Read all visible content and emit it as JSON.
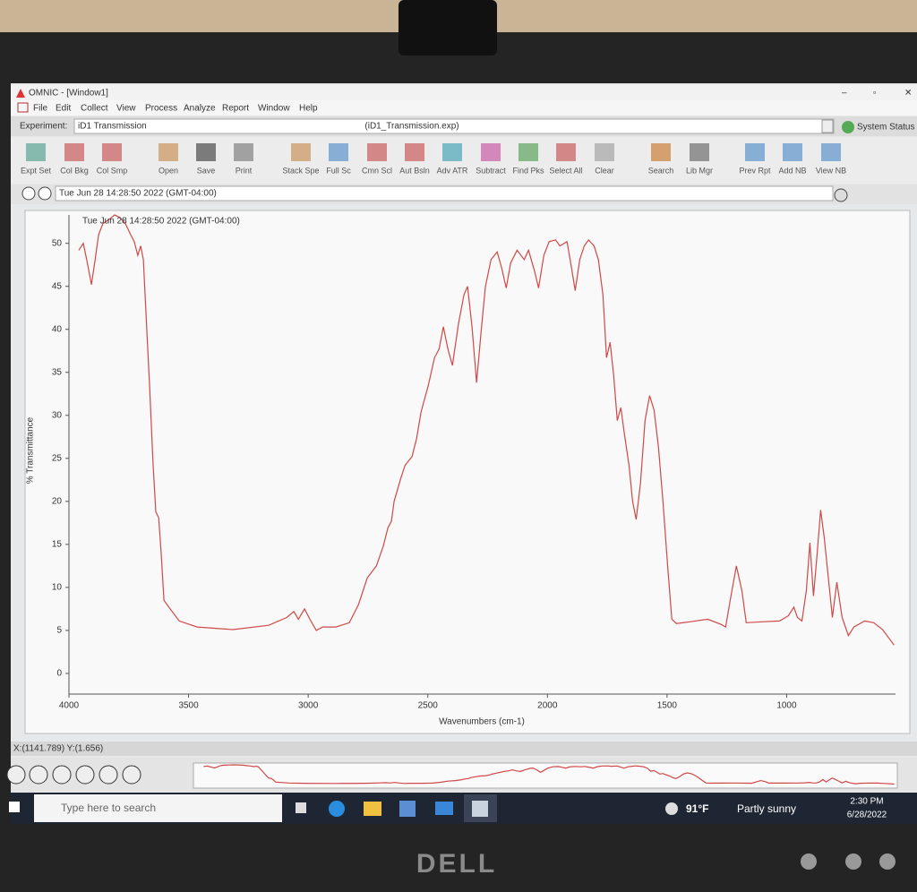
{
  "window": {
    "title": "OMNIC - [Window1]",
    "menus": [
      "File",
      "Edit",
      "Collect",
      "View",
      "Process",
      "Analyze",
      "Report",
      "Window",
      "Help"
    ]
  },
  "experiment": {
    "label": "Experiment:",
    "name": "iD1 Transmission",
    "file": "(iD1_Transmission.exp)",
    "status": "System Status"
  },
  "toolbar": [
    "Expt Set",
    "Col Bkg",
    "Col Smp",
    "Open",
    "Save",
    "Print",
    "Stack Spe",
    "Full Sc",
    "Cmn Scl",
    "Aut Bsln",
    "Adv ATR",
    "Subtract",
    "Find Pks",
    "Select All",
    "Clear",
    "Search",
    "Lib Mgr",
    "Prev Rpt",
    "Add NB",
    "View NB"
  ],
  "info": "Tue Jun 28 14:28:50 2022 (GMT-04:00)",
  "chart_data": {
    "type": "line",
    "annotation": "Tue Jun 28 14:28:50 2022 (GMT-04:00)",
    "x_label": "Wavenumbers (cm-1)",
    "y_label": "% Transmittance",
    "xlim": [
      4000,
      545
    ],
    "ylim": [
      -2.4,
      53.3
    ],
    "xticks": [
      4000,
      3500,
      3000,
      2500,
      2000,
      1500,
      1000
    ],
    "yticks": [
      0,
      5,
      10,
      15,
      20,
      25,
      30,
      35,
      40,
      45,
      50
    ],
    "series": [
      {
        "name": "iD1 Transmission",
        "color": "#d04848",
        "x": [
          3959,
          3940,
          3925,
          3906,
          3891,
          3876,
          3858,
          3831,
          3809,
          3787,
          3764,
          3742,
          3727,
          3712,
          3700,
          3689,
          3678,
          3663,
          3648,
          3637,
          3625,
          3614,
          3603,
          3577,
          3539,
          3464,
          3315,
          3165,
          3090,
          3060,
          3041,
          3015,
          2993,
          2966,
          2940,
          2884,
          2828,
          2790,
          2753,
          2715,
          2686,
          2667,
          2652,
          2641,
          2614,
          2595,
          2566,
          2547,
          2528,
          2498,
          2472,
          2453,
          2435,
          2416,
          2397,
          2371,
          2349,
          2334,
          2315,
          2296,
          2277,
          2259,
          2236,
          2210,
          2191,
          2172,
          2154,
          2127,
          2097,
          2079,
          2052,
          2037,
          2015,
          1993,
          1966,
          1948,
          1918,
          1899,
          1884,
          1865,
          1846,
          1828,
          1805,
          1787,
          1768,
          1753,
          1738,
          1723,
          1708,
          1693,
          1678,
          1659,
          1644,
          1629,
          1611,
          1592,
          1573,
          1554,
          1536,
          1517,
          1498,
          1480,
          1461,
          1405,
          1330,
          1274,
          1255,
          1236,
          1210,
          1187,
          1169,
          1105,
          1030,
          993,
          970,
          955,
          936,
          918,
          903,
          888,
          873,
          858,
          843,
          824,
          809,
          790,
          768,
          742,
          719,
          674,
          636,
          599,
          551
        ],
        "values": [
          49.2,
          50,
          48,
          45.2,
          48,
          51,
          52.3,
          52.8,
          53.3,
          53,
          52.3,
          51,
          50.2,
          48.6,
          49.7,
          48.1,
          41.9,
          33.5,
          24.2,
          18.8,
          18.1,
          13.8,
          8.5,
          7.5,
          6.1,
          5.4,
          5.1,
          5.6,
          6.5,
          7.2,
          6.3,
          7.5,
          6.3,
          5,
          5.4,
          5.4,
          5.9,
          8,
          11.1,
          12.5,
          14.8,
          16.9,
          17.7,
          20,
          22.6,
          24.2,
          25.2,
          27.3,
          30.4,
          33.5,
          36.7,
          37.7,
          40.3,
          37.7,
          35.8,
          40.8,
          44,
          45,
          40.3,
          33.8,
          39.8,
          45,
          48.1,
          49,
          47.1,
          44.8,
          47.7,
          49.2,
          48.1,
          49.2,
          46.6,
          44.8,
          48.6,
          50.2,
          50.4,
          49.7,
          50.2,
          47.1,
          44.5,
          48.1,
          49.7,
          50.4,
          49.7,
          48.1,
          44,
          36.7,
          38.5,
          34.6,
          29.4,
          30.9,
          27.8,
          24.2,
          20,
          17.9,
          22.1,
          29.4,
          32.3,
          30.6,
          26.3,
          20,
          12.7,
          6.3,
          5.8,
          6,
          6.3,
          5.7,
          5.4,
          8.5,
          12.5,
          9.6,
          5.9,
          6,
          6.1,
          6.7,
          7.7,
          6.5,
          6.1,
          9.6,
          15.2,
          9,
          13.8,
          19,
          15.8,
          10.6,
          6.5,
          10.6,
          6.5,
          4.4,
          5.4,
          6.1,
          5.9,
          5.1,
          3.3
        ]
      }
    ]
  },
  "status_bar": "X:(1141.789) Y:(1.656)",
  "taskbar": {
    "search": "Type here to search",
    "temperature": "91°F",
    "weather": "Partly sunny",
    "time": "2:30 PM",
    "date": "6/28/2022"
  },
  "bezel": {
    "brand": "DELL"
  }
}
